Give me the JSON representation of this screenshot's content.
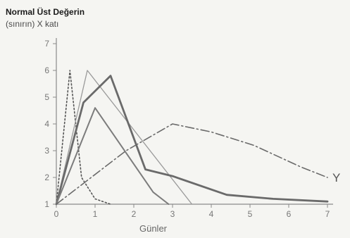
{
  "chart_data": {
    "type": "line",
    "title": "Normal Üst Değerin",
    "subtitle": "(sınırın) X katı",
    "xlabel": "Günler",
    "ylabel": "",
    "xlim": [
      0,
      7
    ],
    "ylim": [
      1,
      7
    ],
    "x_ticks": [
      "0",
      "1",
      "2",
      "3",
      "4",
      "5",
      "6",
      "7"
    ],
    "y_ticks": [
      "1",
      "2",
      "3",
      "4",
      "5",
      "6",
      "7"
    ],
    "grid": false,
    "series": [
      {
        "style": "dotted",
        "color": "#555555",
        "points": [
          [
            0,
            1
          ],
          [
            0.35,
            6
          ],
          [
            0.65,
            2
          ],
          [
            1.0,
            1.2
          ],
          [
            1.4,
            1.0
          ]
        ]
      },
      {
        "style": "thin-solid",
        "color": "#9a9a9a",
        "points": [
          [
            0,
            1
          ],
          [
            0.8,
            6
          ],
          [
            3.5,
            1.0
          ]
        ]
      },
      {
        "style": "thick-solid",
        "color": "#6a6a6a",
        "points": [
          [
            0,
            1
          ],
          [
            0.7,
            4.8
          ],
          [
            1.4,
            5.8
          ],
          [
            2.3,
            2.3
          ],
          [
            3.0,
            2.05
          ],
          [
            4.4,
            1.35
          ],
          [
            5.6,
            1.2
          ],
          [
            7.0,
            1.1
          ]
        ]
      },
      {
        "style": "medium-solid",
        "color": "#7c7c7c",
        "points": [
          [
            0,
            1
          ],
          [
            1.0,
            4.6
          ],
          [
            2.5,
            1.45
          ],
          [
            2.9,
            1.0
          ]
        ]
      },
      {
        "name": "Y",
        "style": "dash-dot",
        "color": "#6a6a6a",
        "points": [
          [
            0,
            1
          ],
          [
            1.8,
            3.0
          ],
          [
            3.0,
            4.0
          ],
          [
            4.0,
            3.7
          ],
          [
            5.1,
            3.2
          ],
          [
            6.3,
            2.4
          ],
          [
            7.0,
            2.0
          ]
        ]
      }
    ]
  }
}
